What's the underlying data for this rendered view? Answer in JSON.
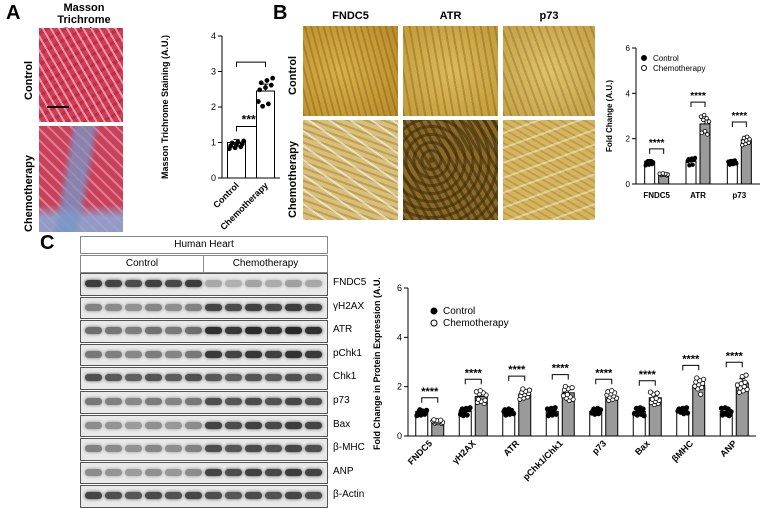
{
  "panel_a": {
    "letter": "A",
    "title": "Masson Trichrome Staining",
    "row_labels": [
      "Control",
      "Chemotherapy"
    ]
  },
  "panel_b": {
    "letter": "B",
    "column_titles": [
      "FNDC5",
      "ATR",
      "p73"
    ],
    "row_labels": [
      "Control",
      "Chemotherapy"
    ]
  },
  "panel_c": {
    "letter": "C",
    "header": "Human Heart",
    "groups": [
      "Control",
      "Chemotherapy"
    ],
    "bands": [
      "FNDC5",
      "γH2AX",
      "ATR",
      "pChk1",
      "Chk1",
      "p73",
      "Bax",
      "β-MHC",
      "ANP",
      "β-Actin"
    ]
  },
  "chart_data": [
    {
      "type": "bar",
      "panel": "A",
      "categories": [
        "Control",
        "Chemotherapy"
      ],
      "values": [
        1.0,
        2.45
      ],
      "ylabel": "Masson Trichrome Staining (A.U.)",
      "ylim": [
        0,
        4
      ],
      "yticks": [
        "0",
        "1",
        "2",
        "3",
        "4"
      ],
      "annotations": [
        "****"
      ],
      "grid": false
    },
    {
      "type": "bar",
      "panel": "B",
      "categories": [
        "FNDC5",
        "ATR",
        "p73"
      ],
      "series": [
        {
          "name": "Control",
          "values": [
            1.0,
            1.0,
            1.0
          ]
        },
        {
          "name": "Chemotherapy",
          "values": [
            0.45,
            2.65,
            1.95
          ]
        }
      ],
      "ylabel": "Fold Change (A.U.)",
      "ylim": [
        0,
        6
      ],
      "yticks": [
        "0",
        "2",
        "4",
        "6"
      ],
      "annotations": [
        "****",
        "****",
        "****"
      ],
      "legend": "top-right",
      "grid": false
    },
    {
      "type": "bar",
      "panel": "C",
      "categories": [
        "FNDC5",
        "γH2AX",
        "ATR",
        "pChk1/Chk1",
        "p73",
        "Bax",
        "βMHC",
        "ANP"
      ],
      "series": [
        {
          "name": "Control",
          "values": [
            1.0,
            1.0,
            1.0,
            1.0,
            1.0,
            1.0,
            1.0,
            1.0
          ]
        },
        {
          "name": "Chemotherapy",
          "values": [
            0.6,
            1.6,
            1.7,
            1.75,
            1.6,
            1.55,
            2.05,
            2.15
          ]
        }
      ],
      "ylabel": "Fold Change in Protein Expression (A.U.)",
      "ylim": [
        0,
        6
      ],
      "yticks": [
        "0",
        "2",
        "4",
        "6"
      ],
      "annotations": [
        "****",
        "****",
        "****",
        "****",
        "****",
        "****",
        "****",
        "****"
      ],
      "legend": "top-left",
      "grid": false
    }
  ]
}
